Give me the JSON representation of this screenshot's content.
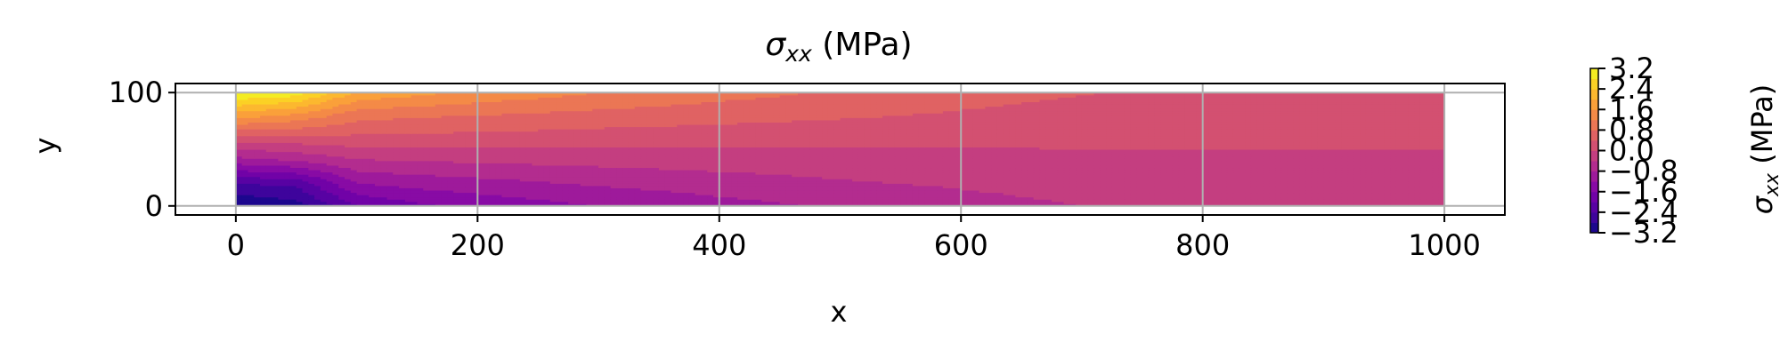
{
  "chart_data": {
    "type": "heatmap",
    "subtype": "filled-contour",
    "title_symbol": "σ",
    "title_subscript": "xx",
    "title_unit": " (MPa)",
    "xlabel": "x",
    "ylabel": "y",
    "xlim": [
      -50,
      1050
    ],
    "ylim": [
      -8,
      108
    ],
    "xticks": [
      0,
      200,
      400,
      600,
      800,
      1000
    ],
    "xtick_labels": [
      "0",
      "200",
      "400",
      "600",
      "800",
      "1000"
    ],
    "yticks": [
      0,
      100
    ],
    "ytick_labels": [
      "0",
      "100"
    ],
    "grid": true,
    "colormap": "plasma",
    "domain": {
      "x": [
        0,
        1000
      ],
      "y": [
        0,
        100
      ]
    },
    "levels": [
      -3.2,
      -2.8,
      -2.4,
      -2.0,
      -1.6,
      -1.2,
      -0.8,
      -0.4,
      0.0,
      0.4,
      0.8,
      1.2,
      1.6,
      2.0,
      2.4,
      2.8,
      3.2
    ],
    "x_samples": [
      0,
      50,
      100,
      150,
      200,
      300,
      400,
      500,
      600,
      700,
      800,
      900,
      1000
    ],
    "y_samples": [
      0,
      20,
      40,
      60,
      80,
      100
    ],
    "values": [
      [
        -3.2,
        -3.0,
        -2.0,
        -1.7,
        -1.5,
        -1.2,
        -0.95,
        -0.75,
        -0.55,
        -0.4,
        -0.28,
        -0.28,
        -0.28
      ],
      [
        -2.4,
        -2.3,
        -1.2,
        -1.05,
        -0.95,
        -0.75,
        -0.6,
        -0.45,
        -0.35,
        -0.25,
        -0.16,
        -0.16,
        -0.16
      ],
      [
        -1.0,
        -0.8,
        -0.45,
        -0.4,
        -0.35,
        -0.28,
        -0.22,
        -0.17,
        -0.12,
        -0.08,
        -0.06,
        -0.06,
        -0.06
      ],
      [
        0.2,
        0.25,
        0.3,
        0.28,
        0.25,
        0.2,
        0.16,
        0.12,
        0.09,
        0.07,
        0.05,
        0.05,
        0.05
      ],
      [
        1.8,
        1.5,
        0.95,
        0.85,
        0.8,
        0.65,
        0.55,
        0.45,
        0.35,
        0.25,
        0.16,
        0.16,
        0.16
      ],
      [
        3.2,
        3.0,
        1.9,
        1.7,
        1.5,
        1.2,
        0.95,
        0.75,
        0.55,
        0.42,
        0.28,
        0.28,
        0.28
      ]
    ],
    "colorbar": {
      "label_symbol": "σ",
      "label_subscript": "xx",
      "label_unit": " (MPa)",
      "ticks": [
        -3.2,
        -2.4,
        -1.6,
        -0.8,
        0.0,
        0.8,
        1.6,
        2.4,
        3.2
      ],
      "tick_labels": [
        "−3.2",
        "−2.4",
        "−1.6",
        "−0.8",
        "0.0",
        "0.8",
        "1.6",
        "2.4",
        "3.2"
      ]
    }
  }
}
